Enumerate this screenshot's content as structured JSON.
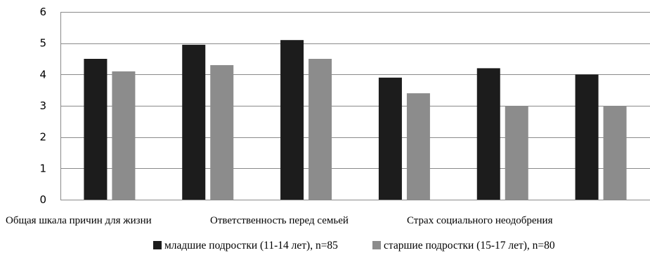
{
  "chart_data": {
    "type": "bar",
    "categories": [
      "Общая шкала причин для жизни",
      "Ответственность перед семьей",
      "Страх социального неодобрения",
      "",
      "",
      ""
    ],
    "series": [
      {
        "name": "младшие подростки (11-14 лет), n=85",
        "values": [
          4.5,
          4.95,
          5.1,
          3.9,
          4.2,
          4.0
        ],
        "color": "#1c1c1c"
      },
      {
        "name": "старшие подростки (15-17 лет), n=80",
        "values": [
          4.1,
          4.3,
          4.5,
          3.4,
          3.0,
          3.0
        ],
        "color": "#8c8c8c"
      }
    ],
    "yticks": [
      0,
      1,
      2,
      3,
      4,
      5,
      6
    ],
    "ylim": [
      0,
      6
    ],
    "grid": true,
    "legend_position": "bottom"
  }
}
